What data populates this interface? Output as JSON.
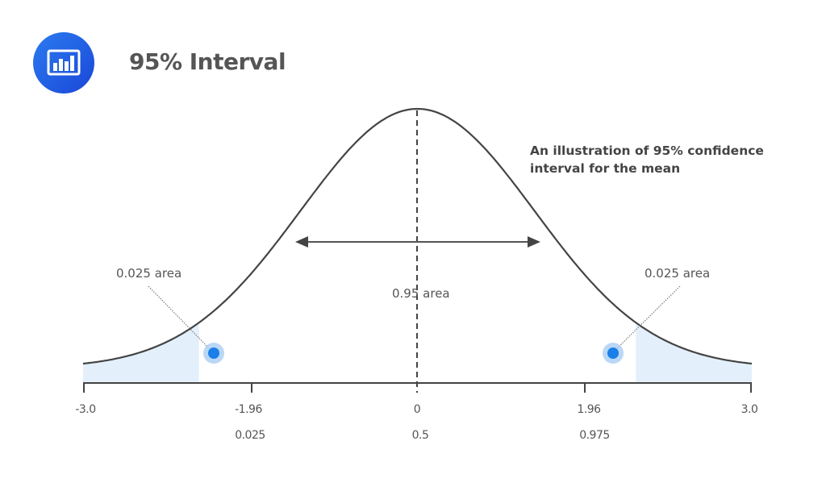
{
  "header": {
    "title": "95% Interval",
    "icon": "bar-chart-icon"
  },
  "caption": "An illustration of 95% confidence interval for the mean",
  "annotations": {
    "left_tail": "0.025 area",
    "center": "0.95 area",
    "right_tail": "0.025 area"
  },
  "axis": {
    "z_ticks": [
      "-3.0",
      "-1.96",
      "0",
      "1.96",
      "3.0"
    ],
    "p_ticks": [
      "0.025",
      "0.5",
      "0.975"
    ]
  },
  "colors": {
    "curve": "#444444",
    "tail_fill": "#e3f0fb",
    "marker": "#1a7fe6",
    "marker_halo": "#a9cdf3",
    "icon_bg": "#1f5fe0"
  },
  "chart_data": {
    "type": "area",
    "title": "95% Interval",
    "subtitle": "An illustration of 95% confidence interval for the mean",
    "distribution": "standard normal",
    "x_range": [
      -3.0,
      3.0
    ],
    "xlabel": "",
    "ylabel": "",
    "grid": false,
    "x_ticks": [
      -3.0,
      -1.96,
      0,
      1.96,
      3.0
    ],
    "cumulative_labels": [
      {
        "x": -1.96,
        "p": 0.025
      },
      {
        "x": 0,
        "p": 0.5
      },
      {
        "x": 1.96,
        "p": 0.975
      }
    ],
    "shaded_regions": [
      {
        "from": -3.0,
        "to": -1.96,
        "area": 0.025,
        "label": "0.025 area"
      },
      {
        "from": 1.96,
        "to": 3.0,
        "area": 0.025,
        "label": "0.025 area"
      }
    ],
    "center_region": {
      "from": -1.96,
      "to": 1.96,
      "area": 0.95,
      "label": "0.95 area"
    },
    "mean_line": 0
  }
}
